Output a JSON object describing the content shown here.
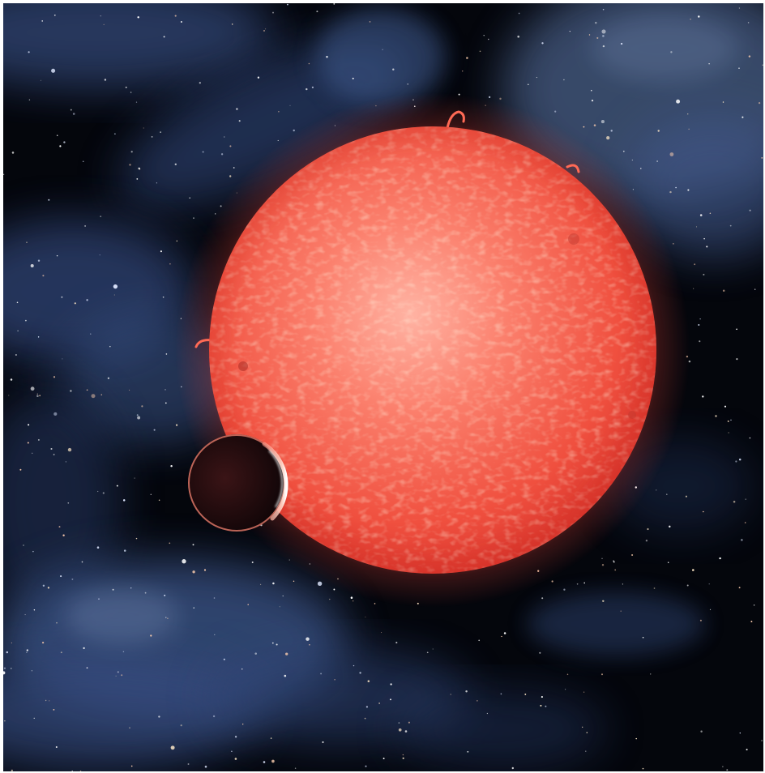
{
  "scene": {
    "subject": "red-dwarf-star-with-transiting-exoplanet",
    "colors": {
      "frame": "#ffffff",
      "space": "#04060c",
      "nebula": "#4a6aa8",
      "nebula_light": "#8aa6d6",
      "star_core": "#ff9a86",
      "star_mid": "#f2584a",
      "star_edge": "#d8352e",
      "star_glow": "#ff5a4a",
      "planet_dark": "#1a0a0c",
      "planet_rim": "#ffd2c4"
    },
    "icons": [
      "star-icon",
      "planet-icon",
      "nebula-icon",
      "starfield-icon"
    ]
  }
}
